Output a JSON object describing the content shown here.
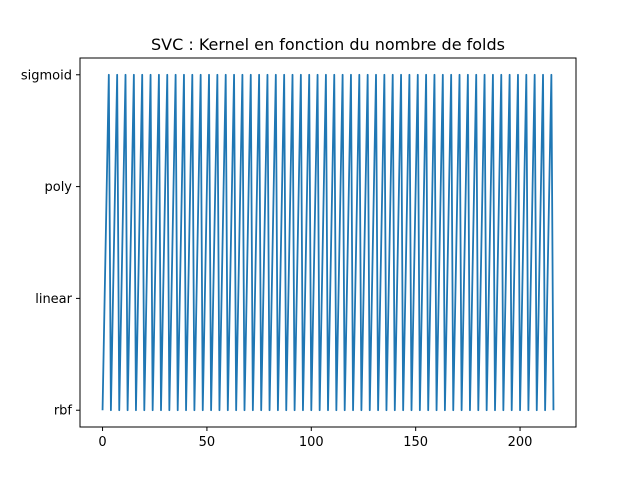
{
  "chart_data": {
    "type": "line",
    "title": "SVC : Kernel en fonction du nombre de folds",
    "xlabel": "",
    "ylabel": "",
    "categories_y": [
      "rbf",
      "linear",
      "poly",
      "sigmoid"
    ],
    "x_ticks": [
      0,
      50,
      100,
      150,
      200
    ],
    "xlim": [
      -10.8,
      226.8
    ],
    "ylim": [
      -0.15,
      3.15
    ],
    "pattern": {
      "description_values": "kernel index cycles rbf(0) -> sigmoid(3) with period 4 folds",
      "sequence_rbf_index": [
        0,
        3
      ],
      "period": 4
    },
    "series": [
      {
        "color": "#1f77b4",
        "x_start": 0,
        "x_end": 216,
        "x_step": 1,
        "y_cycle": [
          0,
          1,
          2,
          3
        ]
      }
    ],
    "grid": false,
    "legend": "none"
  },
  "colors": {
    "line": "#1f77b4",
    "axes": "#000000",
    "background": "#ffffff"
  }
}
